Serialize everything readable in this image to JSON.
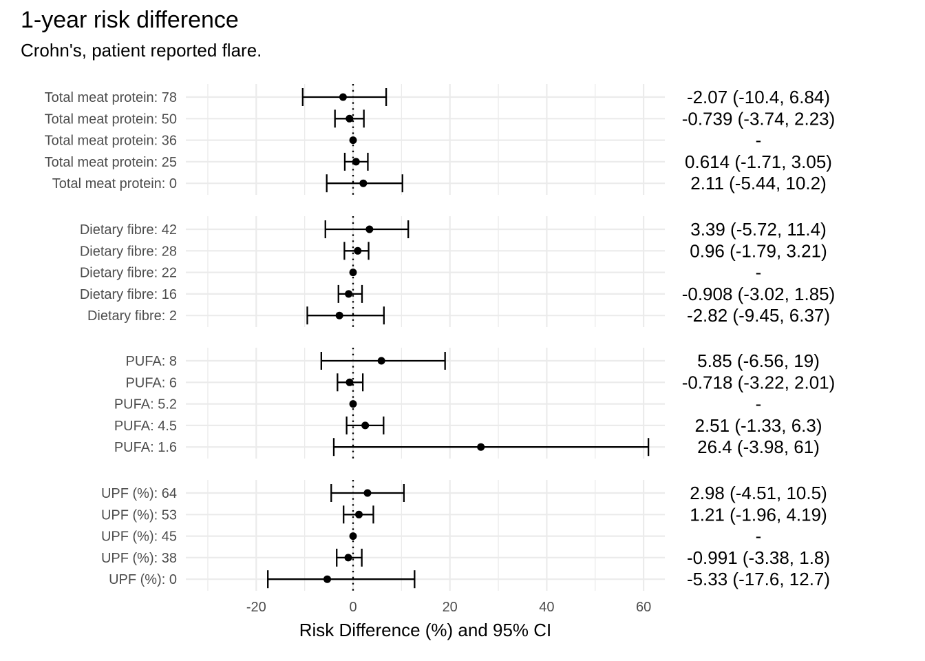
{
  "chart_data": {
    "type": "forest",
    "title": "1-year risk difference",
    "subtitle": "Crohn's, patient reported flare.",
    "xlabel": "Risk Difference (%) and 95% CI",
    "ylabel": "",
    "xlim": [
      -32.5,
      64.5
    ],
    "xticks": [
      -20,
      0,
      20,
      40,
      60
    ],
    "xtick_labels": [
      "-20",
      "0",
      "20",
      "40",
      "60"
    ],
    "reference_line": 0,
    "grid": true,
    "panels": [
      {
        "rows": [
          {
            "label": "Total meat protein: 78",
            "estimate": -2.07,
            "lower": -10.4,
            "upper": 6.84,
            "text": "-2.07 (-10.4, 6.84)"
          },
          {
            "label": "Total meat protein: 50",
            "estimate": -0.739,
            "lower": -3.74,
            "upper": 2.23,
            "text": "-0.739 (-3.74, 2.23)"
          },
          {
            "label": "Total meat protein: 36",
            "estimate": 0,
            "lower": null,
            "upper": null,
            "text": "-"
          },
          {
            "label": "Total meat protein: 25",
            "estimate": 0.614,
            "lower": -1.71,
            "upper": 3.05,
            "text": "0.614 (-1.71, 3.05)"
          },
          {
            "label": "Total meat protein: 0",
            "estimate": 2.11,
            "lower": -5.44,
            "upper": 10.2,
            "text": "2.11 (-5.44, 10.2)"
          }
        ]
      },
      {
        "rows": [
          {
            "label": "Dietary fibre: 42",
            "estimate": 3.39,
            "lower": -5.72,
            "upper": 11.4,
            "text": "3.39 (-5.72, 11.4)"
          },
          {
            "label": "Dietary fibre: 28",
            "estimate": 0.96,
            "lower": -1.79,
            "upper": 3.21,
            "text": "0.96 (-1.79, 3.21)"
          },
          {
            "label": "Dietary fibre: 22",
            "estimate": 0,
            "lower": null,
            "upper": null,
            "text": "-"
          },
          {
            "label": "Dietary fibre: 16",
            "estimate": -0.908,
            "lower": -3.02,
            "upper": 1.85,
            "text": "-0.908 (-3.02, 1.85)"
          },
          {
            "label": "Dietary fibre: 2",
            "estimate": -2.82,
            "lower": -9.45,
            "upper": 6.37,
            "text": "-2.82 (-9.45, 6.37)"
          }
        ]
      },
      {
        "rows": [
          {
            "label": "PUFA: 8",
            "estimate": 5.85,
            "lower": -6.56,
            "upper": 19,
            "text": "5.85 (-6.56, 19)"
          },
          {
            "label": "PUFA: 6",
            "estimate": -0.718,
            "lower": -3.22,
            "upper": 2.01,
            "text": "-0.718 (-3.22, 2.01)"
          },
          {
            "label": "PUFA: 5.2",
            "estimate": 0,
            "lower": null,
            "upper": null,
            "text": "-"
          },
          {
            "label": "PUFA: 4.5",
            "estimate": 2.51,
            "lower": -1.33,
            "upper": 6.3,
            "text": "2.51 (-1.33, 6.3)"
          },
          {
            "label": "PUFA: 1.6",
            "estimate": 26.4,
            "lower": -3.98,
            "upper": 61,
            "text": "26.4 (-3.98, 61)"
          }
        ]
      },
      {
        "rows": [
          {
            "label": "UPF (%): 64",
            "estimate": 2.98,
            "lower": -4.51,
            "upper": 10.5,
            "text": "2.98 (-4.51, 10.5)"
          },
          {
            "label": "UPF (%): 53",
            "estimate": 1.21,
            "lower": -1.96,
            "upper": 4.19,
            "text": "1.21 (-1.96, 4.19)"
          },
          {
            "label": "UPF (%): 45",
            "estimate": 0,
            "lower": null,
            "upper": null,
            "text": "-"
          },
          {
            "label": "UPF (%): 38",
            "estimate": -0.991,
            "lower": -3.38,
            "upper": 1.8,
            "text": "-0.991 (-3.38, 1.8)"
          },
          {
            "label": "UPF (%): 0",
            "estimate": -5.33,
            "lower": -17.6,
            "upper": 12.7,
            "text": "-5.33 (-17.6, 12.7)"
          }
        ]
      }
    ]
  }
}
